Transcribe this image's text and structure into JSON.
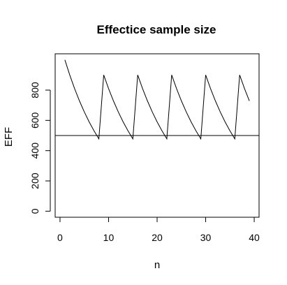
{
  "chart_data": {
    "type": "line",
    "title": "Effectice sample size",
    "xlabel": "n",
    "ylabel": "EFF",
    "xlim": [
      -1,
      41
    ],
    "ylim": [
      -40,
      1040
    ],
    "xticks": [
      0,
      10,
      20,
      30,
      40
    ],
    "yticks": [
      0,
      200,
      400,
      600,
      800
    ],
    "grid": false,
    "legend": "none",
    "threshold": 500,
    "series": [
      {
        "x": [
          1,
          2,
          3,
          4,
          5,
          6,
          7,
          8,
          9,
          10,
          11,
          12,
          13,
          14,
          15,
          16,
          17,
          18,
          19,
          20,
          21,
          22,
          23,
          24,
          25,
          26,
          27,
          28,
          29,
          30,
          31,
          32,
          33,
          34,
          35,
          36,
          37,
          38,
          39
        ],
        "y": [
          1000,
          900,
          810,
          729,
          656,
          590,
          531,
          478,
          900,
          810,
          729,
          656,
          590,
          531,
          478,
          900,
          810,
          729,
          656,
          590,
          531,
          478,
          900,
          810,
          729,
          656,
          590,
          531,
          478,
          900,
          810,
          729,
          656,
          590,
          531,
          478,
          900,
          810,
          729
        ]
      }
    ]
  }
}
